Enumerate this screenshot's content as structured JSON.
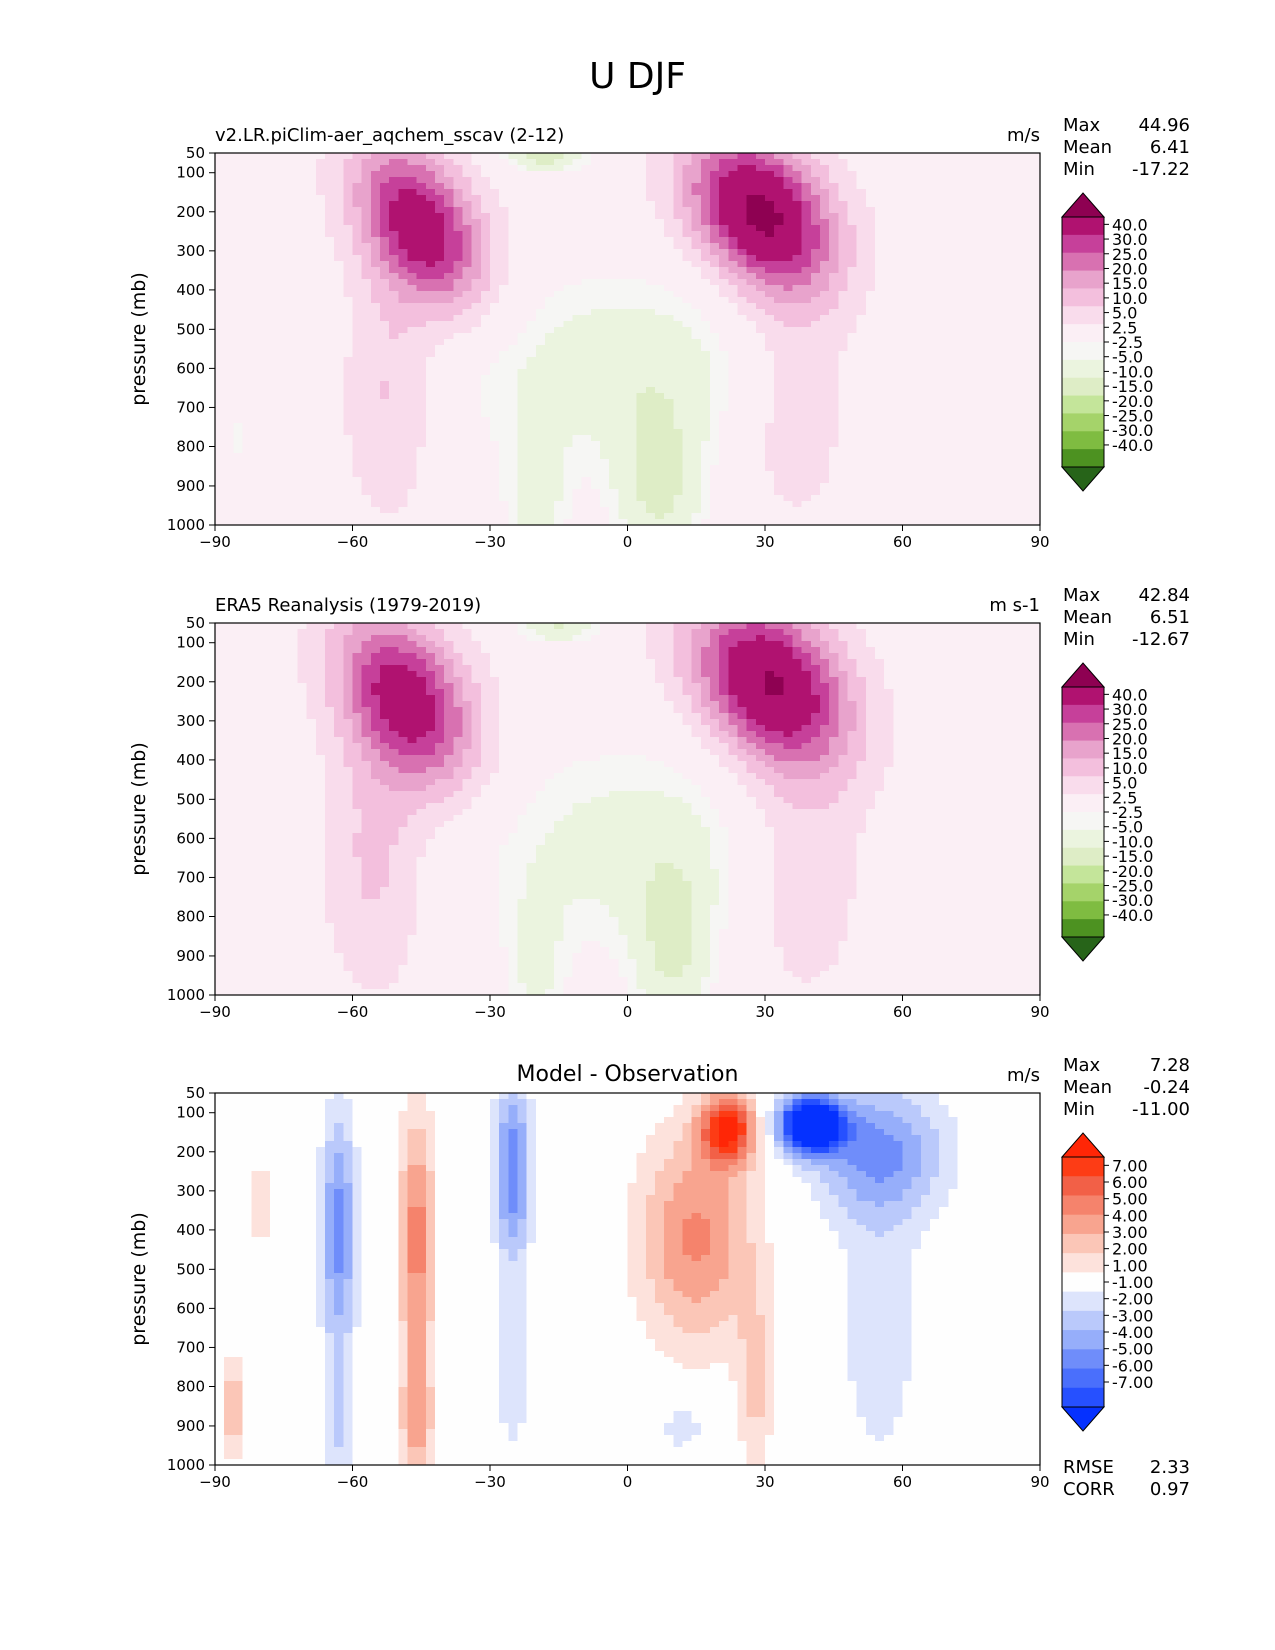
{
  "figure": {
    "title": "U DJF"
  },
  "colors": {
    "full": [
      "#276419",
      "#4d9221",
      "#7fbc41",
      "#a5d36a",
      "#c4e59a",
      "#deedc6",
      "#ebf4df",
      "#f6f6f4",
      "#fbeff5",
      "#f9dcec",
      "#f3bfdd",
      "#e8a3cc",
      "#d871b1",
      "#c6409a",
      "#b01270",
      "#8e0152"
    ],
    "diff": [
      "#0531ff",
      "#2650ff",
      "#4a6ffc",
      "#6f8dfa",
      "#96aefa",
      "#bac9fb",
      "#dde4fc",
      "#fefefe",
      "#fde2dc",
      "#fbc6b7",
      "#f8a48f",
      "#f5836c",
      "#f26047",
      "#fd3c15",
      "#ff2606"
    ]
  },
  "chart_data": [
    {
      "type": "contourf",
      "panel_title_left": "v2.LR.piClim-aer_aqchem_sscav (2-12)",
      "panel_title_center": "",
      "units": "m/s",
      "ylabel": "pressure (mb)",
      "xticks": [
        "−90",
        "−60",
        "−30",
        "0",
        "30",
        "60",
        "90"
      ],
      "yticks": [
        "50",
        "100",
        "200",
        "300",
        "400",
        "500",
        "600",
        "700",
        "800",
        "900",
        "1000"
      ],
      "xlim": [
        -90,
        90
      ],
      "ylim": [
        1000,
        50
      ],
      "stats_labels": [
        "Max",
        "Mean",
        "Min"
      ],
      "stats_values": [
        "44.96",
        "6.41",
        "-17.22"
      ],
      "colorbar_type": "full",
      "colorbar_ticks": [
        "40.0",
        "30.0",
        "25.0",
        "20.0",
        "15.0",
        "10.0",
        "5.0",
        "2.5",
        "-2.5",
        "-5.0",
        "-10.0",
        "-15.0",
        "-20.0",
        "-25.0",
        "-30.0",
        "-40.0"
      ],
      "levels": [
        -40,
        -30,
        -25,
        -20,
        -15,
        -10,
        -5,
        -2.5,
        2.5,
        5,
        10,
        15,
        20,
        25,
        30,
        40
      ],
      "field": {
        "base": 2.0,
        "blobs": [
          {
            "lat": -45,
            "p": 240,
            "amp": 34,
            "slat": 13,
            "sp": 210,
            "sk": 2.8
          },
          {
            "lat": 29,
            "p": 205,
            "amp": 40,
            "slat": 15,
            "sp": 200,
            "sk": 2.6
          },
          {
            "lat": -52,
            "p": 650,
            "amp": 10,
            "slat": 10,
            "sp": 300,
            "sk": 0
          },
          {
            "lat": 36,
            "p": 650,
            "amp": 9,
            "slat": 14,
            "sp": 320,
            "sk": 0
          },
          {
            "lat": 0,
            "p": 600,
            "amp": -10,
            "slat": 42,
            "sp": 260,
            "sk": 0
          },
          {
            "lat": -20,
            "p": 950,
            "amp": -9,
            "slat": 7,
            "sp": 200,
            "sk": 0
          },
          {
            "lat": 7,
            "p": 920,
            "amp": -12,
            "slat": 10,
            "sp": 220,
            "sk": 0
          },
          {
            "lat": -18,
            "p": 60,
            "amp": -14,
            "slat": 9,
            "sp": 40,
            "sk": 0
          },
          {
            "lat": -85,
            "p": 780,
            "amp": -5,
            "slat": 4,
            "sp": 120,
            "sk": 0
          }
        ]
      }
    },
    {
      "type": "contourf",
      "panel_title_left": "ERA5 Reanalysis (1979-2019)",
      "panel_title_center": "",
      "units": "m s-1",
      "ylabel": "pressure (mb)",
      "xticks": [
        "−90",
        "−60",
        "−30",
        "0",
        "30",
        "60",
        "90"
      ],
      "yticks": [
        "50",
        "100",
        "200",
        "300",
        "400",
        "500",
        "600",
        "700",
        "800",
        "900",
        "1000"
      ],
      "xlim": [
        -90,
        90
      ],
      "ylim": [
        1000,
        50
      ],
      "stats_labels": [
        "Max",
        "Mean",
        "Min"
      ],
      "stats_values": [
        "42.84",
        "6.51",
        "-12.67"
      ],
      "colorbar_type": "full",
      "colorbar_ticks": [
        "40.0",
        "30.0",
        "25.0",
        "20.0",
        "15.0",
        "10.0",
        "5.0",
        "2.5",
        "-2.5",
        "-5.0",
        "-10.0",
        "-15.0",
        "-20.0",
        "-25.0",
        "-30.0",
        "-40.0"
      ],
      "levels": [
        -40,
        -30,
        -25,
        -20,
        -15,
        -10,
        -5,
        -2.5,
        2.5,
        5,
        10,
        15,
        20,
        25,
        30,
        40
      ],
      "field": {
        "base": 2.0,
        "blobs": [
          {
            "lat": -48,
            "p": 250,
            "amp": 33,
            "slat": 14,
            "sp": 220,
            "sk": 2.6
          },
          {
            "lat": 31,
            "p": 205,
            "amp": 38,
            "slat": 16,
            "sp": 210,
            "sk": 2.6
          },
          {
            "lat": -55,
            "p": 650,
            "amp": 10,
            "slat": 11,
            "sp": 320,
            "sk": 0
          },
          {
            "lat": 38,
            "p": 650,
            "amp": 9,
            "slat": 15,
            "sp": 340,
            "sk": 0
          },
          {
            "lat": 2,
            "p": 620,
            "amp": -9,
            "slat": 40,
            "sp": 280,
            "sk": 0
          },
          {
            "lat": -20,
            "p": 950,
            "amp": -7,
            "slat": 7,
            "sp": 200,
            "sk": 0
          },
          {
            "lat": 10,
            "p": 900,
            "amp": -11,
            "slat": 9,
            "sp": 230,
            "sk": 0
          },
          {
            "lat": -15,
            "p": 60,
            "amp": -12,
            "slat": 9,
            "sp": 40,
            "sk": 0
          },
          {
            "lat": -72,
            "p": 900,
            "amp": -5,
            "slat": 3,
            "sp": 130,
            "sk": 0
          }
        ]
      }
    },
    {
      "type": "contourf",
      "panel_title_left": "",
      "panel_title_center": "Model - Observation",
      "units": "m/s",
      "ylabel": "pressure (mb)",
      "xticks": [
        "−90",
        "−60",
        "−30",
        "0",
        "30",
        "60",
        "90"
      ],
      "yticks": [
        "50",
        "100",
        "200",
        "300",
        "400",
        "500",
        "600",
        "700",
        "800",
        "900",
        "1000"
      ],
      "xlim": [
        -90,
        90
      ],
      "ylim": [
        1000,
        50
      ],
      "stats_labels": [
        "Max",
        "Mean",
        "Min"
      ],
      "stats_values": [
        "7.28",
        "-0.24",
        "-11.00"
      ],
      "extra_labels": [
        "RMSE",
        "CORR"
      ],
      "extra_values": [
        "2.33",
        "0.97"
      ],
      "colorbar_type": "diff",
      "colorbar_ticks": [
        "7.00",
        "6.00",
        "5.00",
        "4.00",
        "3.00",
        "2.00",
        "1.00",
        "-1.00",
        "-2.00",
        "-3.00",
        "-4.00",
        "-5.00",
        "-6.00",
        "-7.00"
      ],
      "levels": [
        -7,
        -6,
        -5,
        -4,
        -3,
        -2,
        -1,
        1,
        2,
        3,
        4,
        5,
        6,
        7
      ],
      "field": {
        "base": 0.0,
        "blobs": [
          {
            "lat": 40,
            "p": 130,
            "amp": -11,
            "slat": 7,
            "sp": 70,
            "sk": 0
          },
          {
            "lat": 55,
            "p": 200,
            "amp": -4,
            "slat": 15,
            "sp": 170,
            "sk": 0
          },
          {
            "lat": 55,
            "p": 650,
            "amp": -1.6,
            "slat": 10,
            "sp": 420,
            "sk": 0
          },
          {
            "lat": 22,
            "p": 140,
            "amp": 7,
            "slat": 6,
            "sp": 90,
            "sk": 0
          },
          {
            "lat": 15,
            "p": 420,
            "amp": 4.2,
            "slat": 13,
            "sp": 280,
            "sk": 0
          },
          {
            "lat": 28,
            "p": 800,
            "amp": 2.2,
            "slat": 4,
            "sp": 250,
            "sk": 0
          },
          {
            "lat": -46,
            "p": 420,
            "amp": 4.5,
            "slat": 4,
            "sp": 330,
            "sk": 0
          },
          {
            "lat": -46,
            "p": 900,
            "amp": 3,
            "slat": 4,
            "sp": 200,
            "sk": 0
          },
          {
            "lat": -63,
            "p": 400,
            "amp": -4.5,
            "slat": 4,
            "sp": 300,
            "sk": 0
          },
          {
            "lat": -63,
            "p": 900,
            "amp": -2,
            "slat": 4,
            "sp": 200,
            "sk": 0
          },
          {
            "lat": -25,
            "p": 250,
            "amp": -5,
            "slat": 4,
            "sp": 230,
            "sk": 0
          },
          {
            "lat": -25,
            "p": 780,
            "amp": -1.8,
            "slat": 4,
            "sp": 200,
            "sk": 0
          },
          {
            "lat": 12,
            "p": 900,
            "amp": -1.6,
            "slat": 6,
            "sp": 80,
            "sk": 0
          },
          {
            "lat": -80,
            "p": 330,
            "amp": 1.8,
            "slat": 3,
            "sp": 120,
            "sk": 0
          },
          {
            "lat": -86,
            "p": 850,
            "amp": 4,
            "slat": 1.6,
            "sp": 130,
            "sk": 0
          }
        ]
      }
    }
  ]
}
